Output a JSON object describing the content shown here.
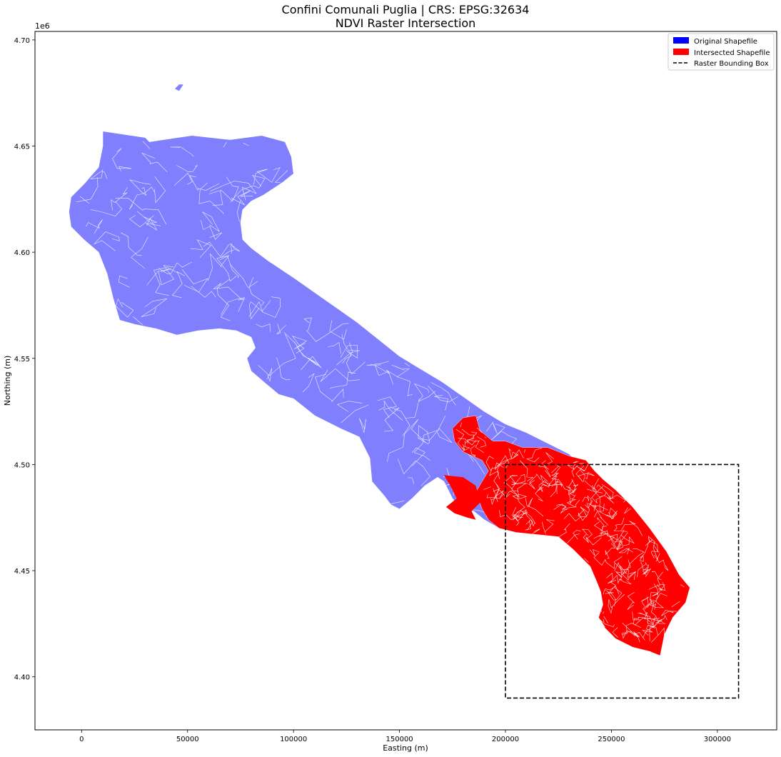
{
  "chart_data": {
    "type": "map",
    "title_line1": "Confini Comunali Puglia | CRS: EPSG:32634",
    "title_line2": "NDVI Raster Intersection",
    "xlabel": "Easting (m)",
    "ylabel": "Northing (m)",
    "y_offset_label": "1e6",
    "xlim": [
      -22000,
      328000
    ],
    "ylim": [
      4375000,
      4704000
    ],
    "x_ticks": [
      0,
      50000,
      100000,
      150000,
      200000,
      250000,
      300000
    ],
    "x_tick_labels": [
      "0",
      "50000",
      "100000",
      "150000",
      "200000",
      "250000",
      "300000"
    ],
    "y_ticks": [
      4400000,
      4450000,
      4500000,
      4550000,
      4600000,
      4650000,
      4700000
    ],
    "y_tick_labels": [
      "4.40",
      "4.45",
      "4.50",
      "4.55",
      "4.60",
      "4.65",
      "4.70"
    ],
    "grid": false,
    "legend_position": "top-right",
    "legend": [
      {
        "label": "Original Shapefile",
        "kind": "patch",
        "color": "#0000ff"
      },
      {
        "label": "Intersected Shapefile",
        "kind": "patch",
        "color": "#ff0000"
      },
      {
        "label": "Raster Bounding Box",
        "kind": "dashed-line",
        "color": "#000000"
      }
    ],
    "colors": {
      "original_fill": "#8080ff",
      "intersected_fill": "#ff0000",
      "boundary_lines": "#ffffff",
      "bbox_line": "#000000"
    },
    "raster_bbox": {
      "xmin": 200000,
      "xmax": 310000,
      "ymin": 4390000,
      "ymax": 4500000
    },
    "original_outline": [
      [
        10000,
        4657000
      ],
      [
        30000,
        4654000
      ],
      [
        32000,
        4652000
      ],
      [
        52000,
        4655000
      ],
      [
        70000,
        4653000
      ],
      [
        85000,
        4655000
      ],
      [
        96000,
        4652000
      ],
      [
        99000,
        4645000
      ],
      [
        100000,
        4637000
      ],
      [
        95000,
        4633000
      ],
      [
        86000,
        4627000
      ],
      [
        80000,
        4624000
      ],
      [
        76000,
        4620000
      ],
      [
        75000,
        4614000
      ],
      [
        76000,
        4606000
      ],
      [
        80000,
        4602000
      ],
      [
        88000,
        4596000
      ],
      [
        100000,
        4588000
      ],
      [
        110000,
        4581000
      ],
      [
        120000,
        4574000
      ],
      [
        130000,
        4567000
      ],
      [
        140000,
        4559000
      ],
      [
        150000,
        4551000
      ],
      [
        160000,
        4545000
      ],
      [
        170000,
        4539000
      ],
      [
        180000,
        4532000
      ],
      [
        190000,
        4525000
      ],
      [
        200000,
        4519000
      ],
      [
        210000,
        4515000
      ],
      [
        220000,
        4510000
      ],
      [
        230000,
        4505000
      ],
      [
        235000,
        4500000
      ],
      [
        240000,
        4497000
      ],
      [
        245000,
        4494000
      ],
      [
        252000,
        4488000
      ],
      [
        260000,
        4480000
      ],
      [
        268000,
        4470000
      ],
      [
        276000,
        4459000
      ],
      [
        282000,
        4448000
      ],
      [
        287000,
        4442000
      ],
      [
        285000,
        4435000
      ],
      [
        279000,
        4428000
      ],
      [
        275000,
        4420000
      ],
      [
        273000,
        4410000
      ],
      [
        268000,
        4412000
      ],
      [
        260000,
        4414000
      ],
      [
        252000,
        4418000
      ],
      [
        247000,
        4423000
      ],
      [
        244000,
        4428000
      ],
      [
        246000,
        4434000
      ],
      [
        245000,
        4440000
      ],
      [
        243000,
        4445000
      ],
      [
        240000,
        4452000
      ],
      [
        232000,
        4460000
      ],
      [
        225000,
        4466000
      ],
      [
        215000,
        4467000
      ],
      [
        205000,
        4468000
      ],
      [
        197000,
        4470000
      ],
      [
        190000,
        4474000
      ],
      [
        185000,
        4478000
      ],
      [
        180000,
        4478000
      ],
      [
        175000,
        4484000
      ],
      [
        171000,
        4492000
      ],
      [
        168000,
        4494000
      ],
      [
        162000,
        4490000
      ],
      [
        156000,
        4484000
      ],
      [
        150000,
        4479000
      ],
      [
        146000,
        4481000
      ],
      [
        143000,
        4485000
      ],
      [
        137000,
        4492000
      ],
      [
        136000,
        4503000
      ],
      [
        131000,
        4513000
      ],
      [
        122000,
        4517000
      ],
      [
        110000,
        4523000
      ],
      [
        100000,
        4531000
      ],
      [
        93000,
        4533000
      ],
      [
        87000,
        4538000
      ],
      [
        80000,
        4544000
      ],
      [
        78000,
        4550000
      ],
      [
        82000,
        4555000
      ],
      [
        80000,
        4560000
      ],
      [
        73000,
        4563000
      ],
      [
        65000,
        4564000
      ],
      [
        55000,
        4563000
      ],
      [
        45000,
        4561000
      ],
      [
        35000,
        4564000
      ],
      [
        25000,
        4566000
      ],
      [
        18000,
        4568000
      ],
      [
        15000,
        4578000
      ],
      [
        12000,
        4590000
      ],
      [
        8000,
        4600000
      ],
      [
        1000,
        4606000
      ],
      [
        -5000,
        4612000
      ],
      [
        -6000,
        4619000
      ],
      [
        -5000,
        4626000
      ],
      [
        1000,
        4632000
      ],
      [
        8000,
        4640000
      ],
      [
        10000,
        4650000
      ]
    ],
    "intersected_outline": [
      [
        180000,
        4522000
      ],
      [
        186000,
        4523000
      ],
      [
        188000,
        4516000
      ],
      [
        194000,
        4511000
      ],
      [
        200000,
        4511000
      ],
      [
        208000,
        4508000
      ],
      [
        220000,
        4508000
      ],
      [
        230000,
        4504000
      ],
      [
        238000,
        4502000
      ],
      [
        242000,
        4497000
      ],
      [
        246000,
        4493000
      ],
      [
        252000,
        4488000
      ],
      [
        260000,
        4480000
      ],
      [
        268000,
        4470000
      ],
      [
        276000,
        4459000
      ],
      [
        282000,
        4448000
      ],
      [
        287000,
        4442000
      ],
      [
        285000,
        4435000
      ],
      [
        279000,
        4428000
      ],
      [
        275000,
        4420000
      ],
      [
        273000,
        4410000
      ],
      [
        268000,
        4412000
      ],
      [
        260000,
        4414000
      ],
      [
        252000,
        4418000
      ],
      [
        247000,
        4423000
      ],
      [
        244000,
        4428000
      ],
      [
        246000,
        4434000
      ],
      [
        245000,
        4440000
      ],
      [
        243000,
        4445000
      ],
      [
        240000,
        4452000
      ],
      [
        232000,
        4460000
      ],
      [
        225000,
        4466000
      ],
      [
        215000,
        4467000
      ],
      [
        205000,
        4468000
      ],
      [
        197000,
        4470000
      ],
      [
        192000,
        4474000
      ],
      [
        189000,
        4479000
      ],
      [
        186000,
        4487000
      ],
      [
        192000,
        4497000
      ],
      [
        189000,
        4502000
      ],
      [
        180000,
        4506000
      ],
      [
        176000,
        4511000
      ],
      [
        175000,
        4517000
      ]
    ],
    "intersected_west_patch": [
      [
        171000,
        4495000
      ],
      [
        180000,
        4494000
      ],
      [
        186000,
        4490000
      ],
      [
        188000,
        4482000
      ],
      [
        184000,
        4478000
      ],
      [
        186000,
        4474000
      ],
      [
        182000,
        4475000
      ],
      [
        176000,
        4477000
      ],
      [
        172000,
        4480000
      ],
      [
        177000,
        4484000
      ],
      [
        174000,
        4490000
      ]
    ],
    "original_islet": [
      [
        44000,
        4677000
      ],
      [
        46000,
        4679000
      ],
      [
        48000,
        4679000
      ],
      [
        46000,
        4676000
      ]
    ]
  }
}
